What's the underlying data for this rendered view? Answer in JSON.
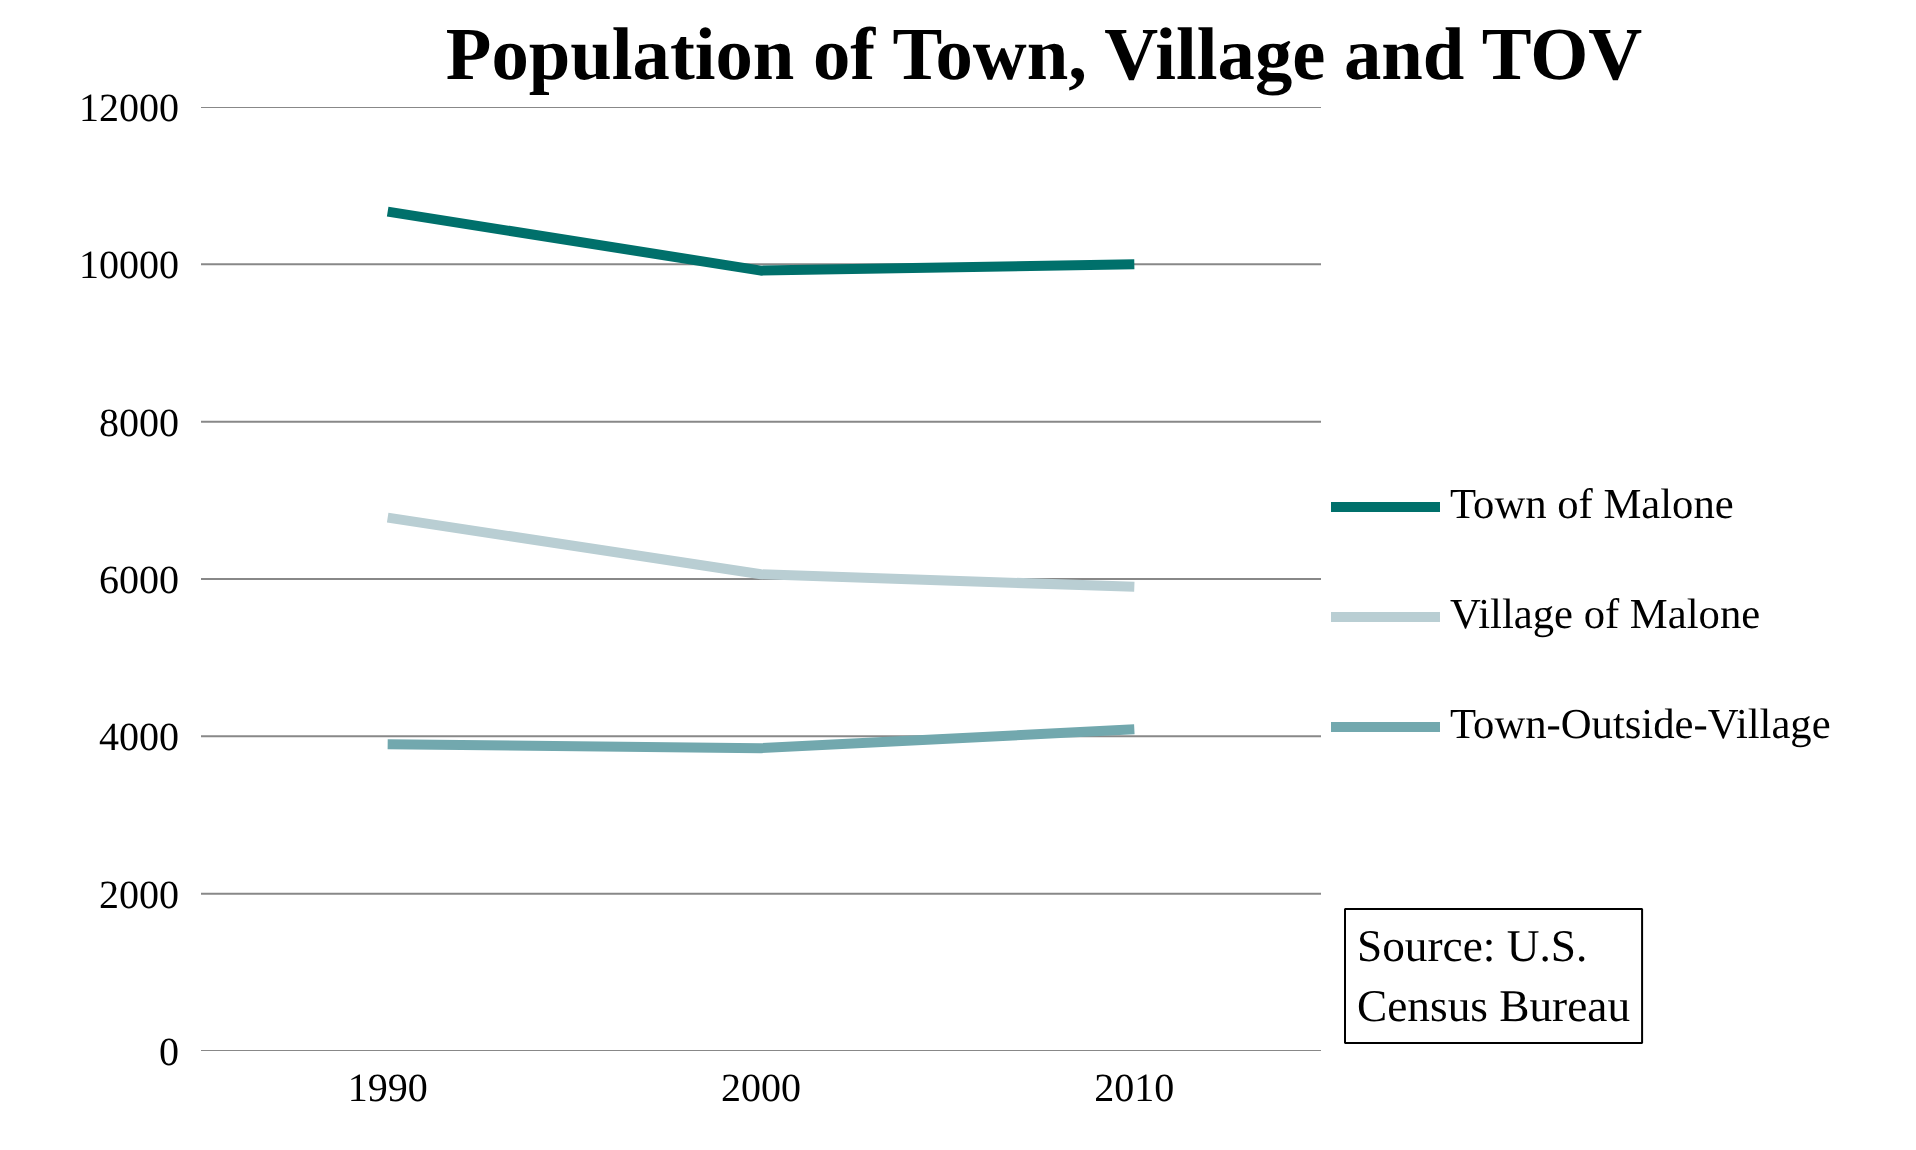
{
  "chart_data": {
    "type": "line",
    "title": "Population of Town, Village and TOV",
    "categories": [
      "1990",
      "2000",
      "2010"
    ],
    "series": [
      {
        "name": "Town of Malone",
        "color": "#00706b",
        "values": [
          10670,
          9920,
          10000
        ]
      },
      {
        "name": "Village of Malone",
        "color": "#b9ced3",
        "values": [
          6780,
          6060,
          5900
        ]
      },
      {
        "name": "Town-Outside-Village",
        "color": "#72a8ae",
        "values": [
          3900,
          3850,
          4090
        ]
      }
    ],
    "ylim": [
      0,
      12000
    ],
    "yticks": [
      0,
      2000,
      4000,
      6000,
      8000,
      10000,
      12000
    ],
    "grid": "y",
    "legend": "right",
    "marker": "none",
    "line_style": "solid",
    "annotations": [
      "Source: U.S.\nCensus Bureau"
    ]
  }
}
